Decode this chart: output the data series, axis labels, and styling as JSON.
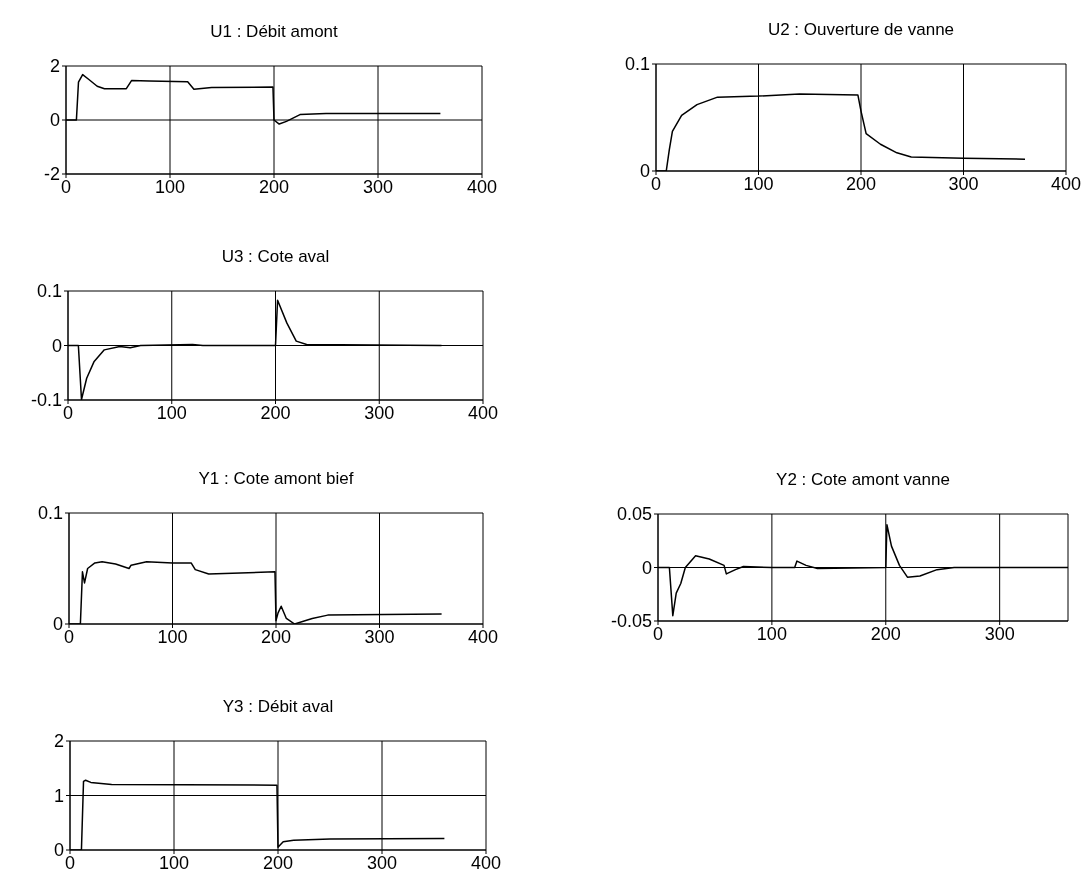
{
  "chart_data": [
    {
      "type": "line",
      "title": "U1 : Débit amont",
      "xlim": [
        0,
        400
      ],
      "xticks": [
        0,
        100,
        200,
        300,
        400
      ],
      "ylim": [
        -2,
        2
      ],
      "yticks": [
        -2,
        0,
        2
      ],
      "grid": true,
      "marker": "none",
      "series": [
        {
          "color": "#000000",
          "x": [
            0,
            10,
            12,
            16,
            22,
            30,
            37,
            58,
            63,
            80,
            117,
            123,
            140,
            199,
            200,
            205,
            212,
            225,
            250,
            300,
            360
          ],
          "values": [
            0,
            0,
            1.4,
            1.68,
            1.5,
            1.25,
            1.16,
            1.16,
            1.46,
            1.44,
            1.42,
            1.14,
            1.2,
            1.22,
            0,
            -0.15,
            -0.05,
            0.2,
            0.24,
            0.24,
            0.24
          ]
        }
      ]
    },
    {
      "type": "line",
      "title": "U2 : Ouverture de vanne",
      "xlim": [
        0,
        400
      ],
      "xticks": [
        0,
        100,
        200,
        300,
        400
      ],
      "ylim": [
        0,
        0.1
      ],
      "yticks": [
        0,
        0.1
      ],
      "grid": true,
      "marker": "none",
      "series": [
        {
          "color": "#000000",
          "x": [
            0,
            10,
            13,
            16,
            25,
            40,
            60,
            100,
            140,
            197,
            200,
            205,
            219,
            235,
            249,
            300,
            360
          ],
          "values": [
            0,
            0,
            0.02,
            0.037,
            0.052,
            0.062,
            0.069,
            0.07,
            0.072,
            0.071,
            0.056,
            0.035,
            0.025,
            0.017,
            0.013,
            0.012,
            0.011
          ]
        }
      ]
    },
    {
      "type": "line",
      "title": "U3 : Cote aval",
      "xlim": [
        0,
        400
      ],
      "xticks": [
        0,
        100,
        200,
        300,
        400
      ],
      "ylim": [
        -0.1,
        0.1
      ],
      "yticks": [
        -0.1,
        0,
        0.1
      ],
      "grid": true,
      "marker": "none",
      "series": [
        {
          "color": "#000000",
          "x": [
            0,
            10,
            13,
            18,
            25,
            35,
            50,
            60,
            70,
            120,
            130,
            200,
            202,
            211,
            220,
            230,
            360
          ],
          "values": [
            0,
            0,
            -0.099,
            -0.06,
            -0.03,
            -0.008,
            -0.002,
            -0.004,
            0,
            0.002,
            0,
            0,
            0.083,
            0.041,
            0.008,
            0.002,
            0
          ]
        }
      ]
    },
    {
      "type": "line",
      "title": "Y1 : Cote amont bief",
      "xlim": [
        0,
        400
      ],
      "xticks": [
        0,
        100,
        200,
        300,
        400
      ],
      "ylim": [
        0,
        0.1
      ],
      "yticks": [
        0,
        0.1
      ],
      "grid": true,
      "marker": "none",
      "series": [
        {
          "color": "#000000",
          "x": [
            0,
            11,
            13,
            15,
            18,
            25,
            32,
            45,
            58,
            60,
            75,
            100,
            118,
            122,
            135,
            199,
            200,
            202,
            205,
            210,
            218,
            235,
            250,
            360
          ],
          "values": [
            0,
            0,
            0.047,
            0.037,
            0.05,
            0.055,
            0.056,
            0.054,
            0.05,
            0.053,
            0.056,
            0.055,
            0.055,
            0.049,
            0.045,
            0.047,
            0.003,
            0.01,
            0.016,
            0.005,
            0,
            0.005,
            0.008,
            0.009
          ]
        }
      ]
    },
    {
      "type": "line",
      "title": "Y2 : Cote amont vanne",
      "xlim": [
        0,
        360
      ],
      "xticks": [
        0,
        100,
        200,
        300
      ],
      "ylim": [
        -0.05,
        0.05
      ],
      "yticks": [
        -0.05,
        0,
        0.05
      ],
      "grid": true,
      "marker": "none",
      "series": [
        {
          "color": "#000000",
          "x": [
            0,
            10,
            13,
            16,
            20,
            24,
            33,
            45,
            58,
            60,
            68,
            75,
            100,
            120,
            122,
            130,
            140,
            200,
            201,
            205,
            212,
            219,
            230,
            245,
            260,
            360
          ],
          "values": [
            0,
            0,
            -0.045,
            -0.024,
            -0.015,
            0,
            0.011,
            0.008,
            0.002,
            -0.006,
            -0.002,
            0.001,
            0,
            0,
            0.006,
            0.002,
            -0.001,
            0,
            0.04,
            0.02,
            0.002,
            -0.009,
            -0.008,
            -0.002,
            0,
            0
          ]
        }
      ]
    },
    {
      "type": "line",
      "title": "Y3 : Débit aval",
      "xlim": [
        0,
        400
      ],
      "xticks": [
        0,
        100,
        200,
        300,
        400
      ],
      "ylim": [
        0,
        2
      ],
      "yticks": [
        0,
        1,
        2
      ],
      "grid": true,
      "marker": "none",
      "series": [
        {
          "color": "#000000",
          "x": [
            0,
            11,
            13,
            15,
            20,
            40,
            199,
            200,
            202,
            205,
            215,
            250,
            360
          ],
          "values": [
            0,
            0,
            1.26,
            1.28,
            1.24,
            1.2,
            1.19,
            0.05,
            0.09,
            0.15,
            0.18,
            0.2,
            0.21
          ]
        }
      ]
    }
  ]
}
